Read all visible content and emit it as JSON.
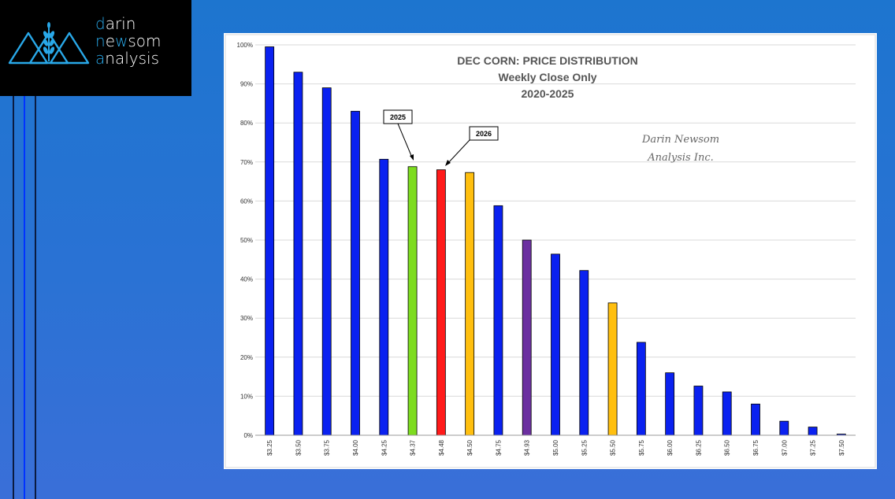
{
  "brand": {
    "line1_first": "d",
    "line1_rest": "arin",
    "line2_first": "n",
    "line2_mid": "e",
    "line2_accent": "w",
    "line2_rest": "som",
    "line3_first": "a",
    "line3_rest": "nalysis",
    "accent_color": "#29a8e8"
  },
  "watermark": {
    "line1": "Darin Newsom",
    "line2": "Analysis Inc."
  },
  "callouts": [
    {
      "label": "2025"
    },
    {
      "label": "2026"
    }
  ],
  "chart_data": {
    "type": "bar",
    "title": [
      "DEC CORN: PRICE DISTRIBUTION",
      "Weekly Close Only",
      "2020-2025"
    ],
    "xlabel": "",
    "ylabel": "",
    "ylim": [
      0,
      100
    ],
    "y_ticks": [
      "0%",
      "10%",
      "20%",
      "30%",
      "40%",
      "50%",
      "60%",
      "70%",
      "80%",
      "90%",
      "100%"
    ],
    "grid": true,
    "categories": [
      "$3.25",
      "$3.50",
      "$3.75",
      "$4.00",
      "$4.25",
      "$4.37",
      "$4.48",
      "$4.50",
      "$4.75",
      "$4.93",
      "$5.00",
      "$5.25",
      "$5.50",
      "$5.75",
      "$6.00",
      "$6.25",
      "$6.50",
      "$6.75",
      "$7.00",
      "$7.25",
      "$7.50"
    ],
    "values": [
      99.5,
      93,
      89,
      83,
      70.7,
      68.8,
      68,
      67.3,
      58.8,
      50,
      46.4,
      42.2,
      33.9,
      23.8,
      16,
      12.6,
      11.1,
      8,
      3.6,
      2.1,
      0.3
    ],
    "colors": [
      "#0a21f0",
      "#0a21f0",
      "#0a21f0",
      "#0a21f0",
      "#0a21f0",
      "#7ddc1f",
      "#ff1a1a",
      "#ffbf0f",
      "#0a21f0",
      "#6b2fa0",
      "#0a21f0",
      "#0a21f0",
      "#ffbf0f",
      "#0a21f0",
      "#0a21f0",
      "#0a21f0",
      "#0a21f0",
      "#0a21f0",
      "#0a21f0",
      "#0a21f0",
      "#0a21f0"
    ]
  }
}
